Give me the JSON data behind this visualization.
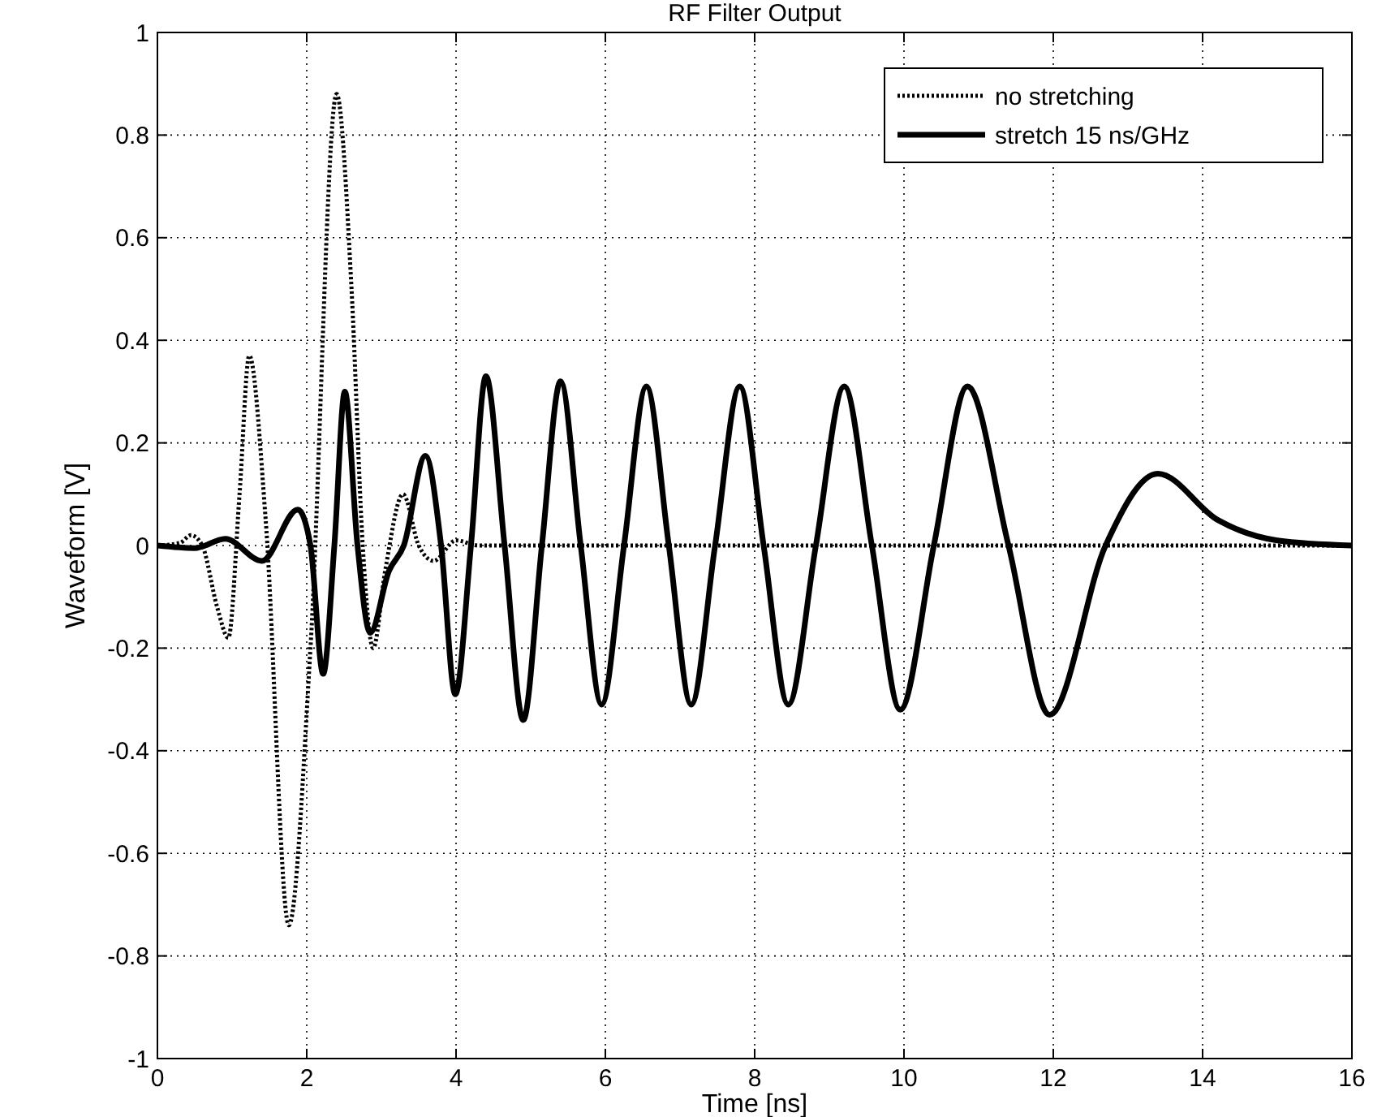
{
  "chart_data": {
    "type": "line",
    "title": "RF Filter Output",
    "xlabel": "Time  [ns]",
    "ylabel": "Waveform  [V]",
    "xlim": [
      0,
      16
    ],
    "ylim": [
      -1,
      1
    ],
    "xticks": [
      0,
      2,
      4,
      6,
      8,
      10,
      12,
      14,
      16
    ],
    "yticks": [
      -1,
      -0.8,
      -0.6,
      -0.4,
      -0.2,
      0,
      0.2,
      0.4,
      0.6,
      0.8,
      1
    ],
    "grid": true,
    "legend": "top right",
    "series": [
      {
        "name": "no stretching",
        "color": "#000000",
        "line_style": "dotted",
        "x": [
          0,
          0.3,
          0.45,
          0.6,
          0.8,
          0.95,
          1.1,
          1.23,
          1.45,
          1.76,
          2.05,
          2.4,
          2.6,
          2.75,
          2.89,
          3.05,
          3.29,
          3.5,
          3.7,
          4.0,
          4.3,
          16
        ],
        "values": [
          0,
          0.005,
          0.02,
          0,
          -0.12,
          -0.18,
          0.1,
          0.37,
          0.05,
          -0.74,
          -0.2,
          0.88,
          0.5,
          0.0,
          -0.2,
          -0.05,
          0.1,
          0.0,
          -0.03,
          0.01,
          0,
          0
        ]
      },
      {
        "name": "stretch 15 ns/GHz",
        "color": "#000000",
        "line_style": "solid",
        "x": [
          0,
          0.5,
          0.91,
          1.4,
          1.88,
          2.05,
          2.22,
          2.37,
          2.51,
          2.68,
          2.85,
          3.1,
          3.3,
          3.59,
          3.8,
          3.99,
          4.2,
          4.4,
          4.65,
          4.9,
          5.15,
          5.4,
          5.67,
          5.95,
          6.25,
          6.55,
          6.85,
          7.15,
          7.47,
          7.8,
          8.12,
          8.45,
          8.82,
          9.2,
          9.57,
          9.95,
          10.4,
          10.85,
          11.4,
          11.95,
          12.7,
          13.4,
          14.2,
          15,
          16
        ],
        "values": [
          0,
          -0.005,
          0.013,
          -0.03,
          0.07,
          0.0,
          -0.25,
          0.0,
          0.3,
          0.0,
          -0.17,
          -0.05,
          0.0,
          0.175,
          0.0,
          -0.29,
          0.0,
          0.33,
          0.0,
          -0.34,
          0.0,
          0.32,
          0.0,
          -0.31,
          0.0,
          0.31,
          0.0,
          -0.31,
          0.0,
          0.31,
          0.0,
          -0.31,
          0.0,
          0.31,
          0.0,
          -0.32,
          0.0,
          0.31,
          0.0,
          -0.33,
          0.0,
          0.14,
          0.05,
          0.01,
          0
        ]
      }
    ]
  }
}
